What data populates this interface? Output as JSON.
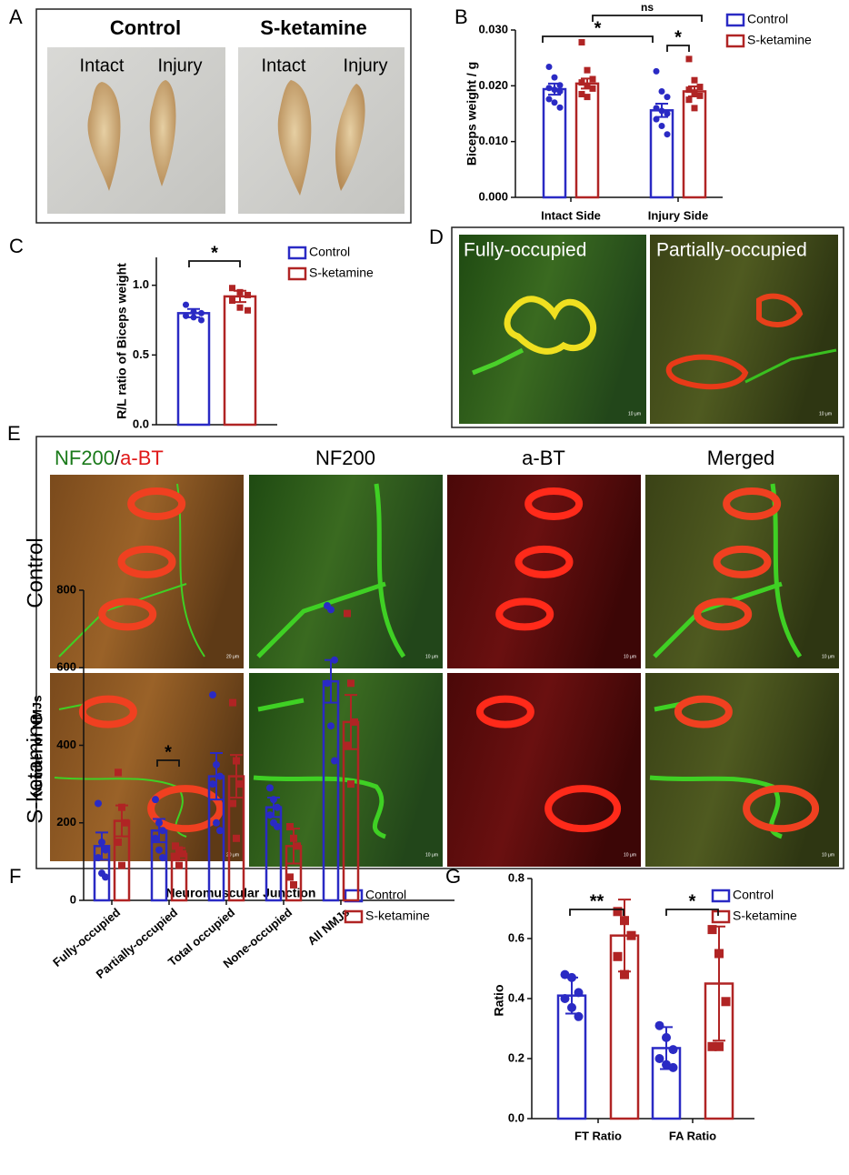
{
  "panel_labels": [
    "A",
    "B",
    "C",
    "D",
    "E",
    "F",
    "G"
  ],
  "panel_a": {
    "groups": [
      "Control",
      "S-ketamine"
    ],
    "sides": [
      "Intact",
      "Injury",
      "Intact",
      "Injury"
    ]
  },
  "panel_d": {
    "labels": [
      "Fully-occupied",
      "Partially-occupied"
    ],
    "scale_bars": [
      "10 μm",
      "10 μm"
    ]
  },
  "panel_e": {
    "header_parts": [
      "NF200",
      "/",
      "a-BT"
    ],
    "columns": [
      "NF200",
      "a-BT",
      "Merged"
    ],
    "rows": [
      "Control",
      "S-ketamine"
    ],
    "scale_bars": [
      "20 μm",
      "10 μm",
      "10 μm",
      "10 μm",
      "20 μm",
      "10 μm",
      "10 μm",
      "10 μm"
    ]
  },
  "chart_data": [
    {
      "type": "bar",
      "ylabel": "Biceps weight / g",
      "categories": [
        "Intact Side",
        "Injury Side"
      ],
      "series": [
        {
          "name": "Control",
          "color": "#2a2ac4",
          "values": [
            0.0194,
            0.0156
          ],
          "errors": [
            0.001,
            0.0012
          ],
          "points": [
            [
              0.0234,
              0.0215,
              0.0201,
              0.0196,
              0.0193,
              0.019,
              0.0176,
              0.017,
              0.0161
            ],
            [
              0.0226,
              0.019,
              0.018,
              0.016,
              0.0155,
              0.015,
              0.014,
              0.0128,
              0.0113
            ]
          ]
        },
        {
          "name": "S-ketamine",
          "color": "#b02424",
          "values": [
            0.0204,
            0.019
          ],
          "errors": [
            0.0009,
            0.0009
          ],
          "points": [
            [
              0.0278,
              0.0228,
              0.0212,
              0.0206,
              0.02,
              0.0195,
              0.0185,
              0.018
            ],
            [
              0.0248,
              0.021,
              0.0198,
              0.0193,
              0.0188,
              0.0182,
              0.0175,
              0.016
            ]
          ]
        }
      ],
      "ylim": [
        0,
        0.03
      ],
      "yticks": [
        {
          "value": 0,
          "label": "0.000"
        },
        {
          "value": 0.01,
          "label": "0.010"
        },
        {
          "value": 0.02,
          "label": "0.020"
        },
        {
          "value": 0.03,
          "label": "0.030"
        }
      ],
      "annotations": [
        {
          "text": "*"
        },
        {
          "text": "ns"
        },
        {
          "text": "*"
        }
      ],
      "legend": "upper right"
    },
    {
      "type": "bar",
      "ylabel": "R/L ratio of Biceps weight",
      "categories": [
        null
      ],
      "series": [
        {
          "name": "Control",
          "color": "#2a2ac4",
          "values": [
            0.8
          ],
          "errors": [
            0.03
          ],
          "points": [
            [
              0.86,
              0.81,
              0.8,
              0.78,
              0.77,
              0.75
            ]
          ]
        },
        {
          "name": "S-ketamine",
          "color": "#b02424",
          "values": [
            0.92
          ],
          "errors": [
            0.04
          ],
          "points": [
            [
              0.98,
              0.95,
              0.93,
              0.89,
              0.84,
              0.82
            ]
          ]
        }
      ],
      "ylim": [
        0,
        1.2
      ],
      "yticks": [
        {
          "value": 0,
          "label": "0.0"
        },
        {
          "value": 0.5,
          "label": "0.5"
        },
        {
          "value": 1,
          "label": "1.0"
        }
      ],
      "annotations": [
        {
          "text": "*"
        }
      ],
      "legend": "upper right"
    },
    {
      "type": "bar",
      "title": "Neuromuscular Junction",
      "ylabel": "Number of NMJs",
      "categories": [
        "Fully-occupied",
        "Partially-occupied",
        "Total occupied",
        "None-occupied",
        "All NMJs"
      ],
      "series": [
        {
          "name": "Control",
          "color": "#2a2ac4",
          "values": [
            140,
            180,
            320,
            240,
            565
          ],
          "errors": [
            35,
            30,
            60,
            25,
            55
          ],
          "points": [
            [
              250,
              150,
              130,
              110,
              70,
              60
            ],
            [
              260,
              200,
              180,
              160,
              130,
              110
            ],
            [
              530,
              350,
              320,
              300,
              200,
              180
            ],
            [
              290,
              260,
              240,
              220,
              200,
              190
            ],
            [
              760,
              750,
              620,
              560,
              450,
              360
            ]
          ]
        },
        {
          "name": "S-ketamine",
          "color": "#b02424",
          "values": [
            205,
            120,
            320,
            140,
            460
          ],
          "errors": [
            40,
            15,
            55,
            45,
            70
          ],
          "points": [
            [
              330,
              240,
              200,
              150,
              90
            ],
            [
              140,
              130,
              120,
              110,
              90
            ],
            [
              510,
              360,
              300,
              250,
              160
            ],
            [
              190,
              160,
              140,
              60,
              40
            ],
            [
              740,
              560,
              460,
              400,
              300
            ]
          ]
        }
      ],
      "ylim": [
        0,
        800
      ],
      "yticks": [
        0,
        200,
        400,
        600,
        800
      ],
      "annotations": [
        {
          "text": "*"
        }
      ],
      "legend": "upper right"
    },
    {
      "type": "bar",
      "ylabel": "Ratio",
      "categories": [
        "FT Ratio",
        "FA Ratio"
      ],
      "series": [
        {
          "name": "Control",
          "color": "#2a2ac4",
          "values": [
            0.41,
            0.235
          ],
          "errors": [
            0.06,
            0.07
          ],
          "points": [
            [
              0.48,
              0.47,
              0.42,
              0.4,
              0.37,
              0.34
            ],
            [
              0.31,
              0.27,
              0.23,
              0.2,
              0.18,
              0.17
            ]
          ]
        },
        {
          "name": "S-ketamine",
          "color": "#b02424",
          "values": [
            0.61,
            0.45
          ],
          "errors": [
            0.12,
            0.19
          ],
          "points": [
            [
              0.69,
              0.66,
              0.61,
              0.54,
              0.48
            ],
            [
              0.63,
              0.55,
              0.39,
              0.24,
              0.24
            ]
          ]
        }
      ],
      "ylim": [
        0,
        0.8
      ],
      "yticks": [
        {
          "value": 0,
          "label": "0.0"
        },
        {
          "value": 0.2,
          "label": "0.2"
        },
        {
          "value": 0.4,
          "label": "0.4"
        },
        {
          "value": 0.6,
          "label": "0.6"
        },
        {
          "value": 0.8,
          "label": "0.8"
        }
      ],
      "annotations": [
        {
          "text": "**"
        },
        {
          "text": "*"
        }
      ],
      "legend": "upper right"
    }
  ]
}
